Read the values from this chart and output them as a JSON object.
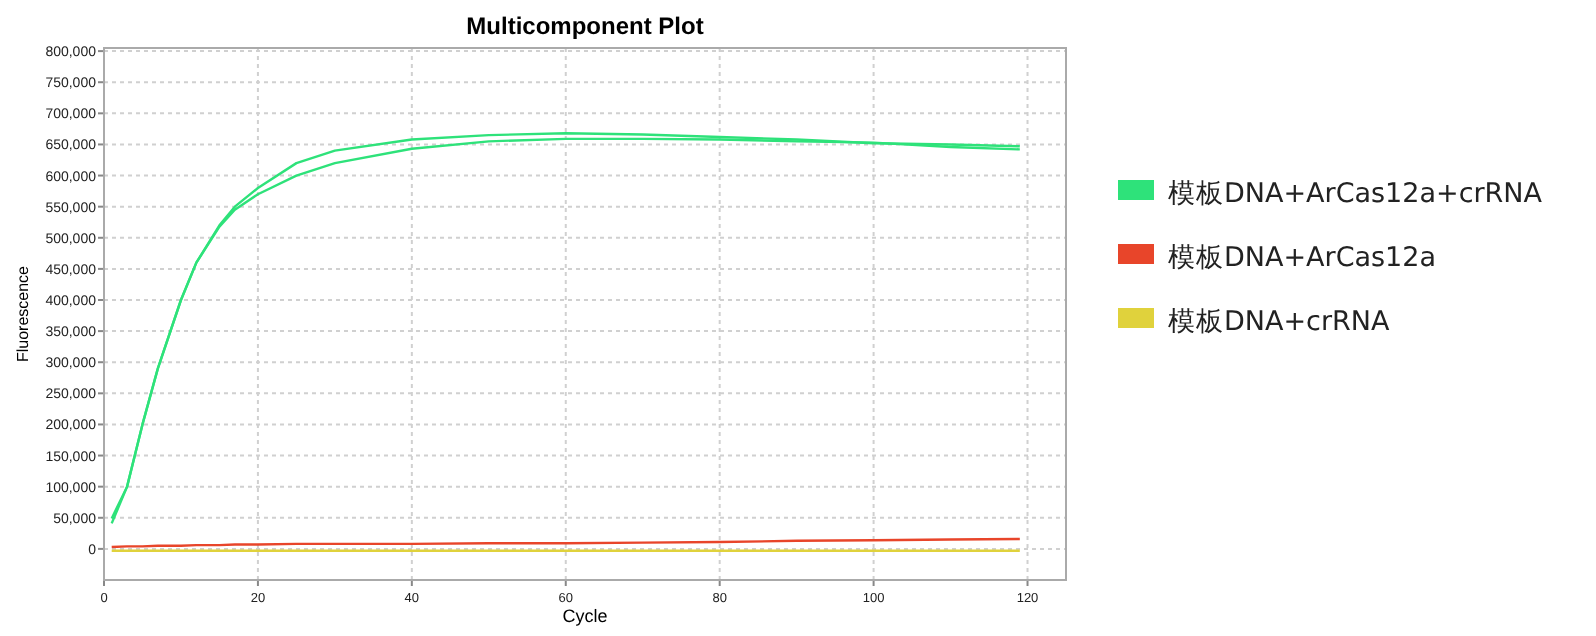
{
  "chart_data": {
    "type": "line",
    "title": "Multicomponent Plot",
    "xlabel": "Cycle",
    "ylabel": "Fluorescence",
    "xlim": [
      0,
      125
    ],
    "xticks": [
      0,
      20,
      40,
      60,
      80,
      100,
      120
    ],
    "ylim": [
      -50000,
      805000
    ],
    "yticks": [
      {
        "value": 0,
        "label": "0"
      },
      {
        "value": 50000,
        "label": "50,000"
      },
      {
        "value": 100000,
        "label": "100,000"
      },
      {
        "value": 150000,
        "label": "150,000"
      },
      {
        "value": 200000,
        "label": "200,000"
      },
      {
        "value": 250000,
        "label": "250,000"
      },
      {
        "value": 300000,
        "label": "300,000"
      },
      {
        "value": 350000,
        "label": "350,000"
      },
      {
        "value": 400000,
        "label": "400,000"
      },
      {
        "value": 450000,
        "label": "450,000"
      },
      {
        "value": 500000,
        "label": "500,000"
      },
      {
        "value": 550000,
        "label": "550,000"
      },
      {
        "value": 600000,
        "label": "600,000"
      },
      {
        "value": 650000,
        "label": "650,000"
      },
      {
        "value": 700000,
        "label": "700,000"
      },
      {
        "value": 750000,
        "label": "750,000"
      },
      {
        "value": 800000,
        "label": "800,000"
      }
    ],
    "grid": true,
    "legend": "right",
    "marker": "none",
    "line_style": "solid",
    "x": [
      1,
      3,
      5,
      7,
      10,
      12,
      15,
      17,
      20,
      25,
      30,
      40,
      50,
      60,
      70,
      80,
      90,
      100,
      110,
      119
    ],
    "series": [
      {
        "name": "模板DNA+ArCas12a+crRNA",
        "color": "#2ee27a",
        "values": [
          49000,
          100000,
          200000,
          290000,
          400000,
          460000,
          520000,
          550000,
          580000,
          620000,
          640000,
          658000,
          665000,
          668000,
          666000,
          662000,
          658000,
          652000,
          650000,
          647000
        ]
      },
      {
        "color": "#2ee27a",
        "values": [
          41000,
          100000,
          200000,
          290000,
          400000,
          460000,
          518000,
          545000,
          570000,
          600000,
          620000,
          643000,
          655000,
          659000,
          659000,
          658000,
          655000,
          653000,
          646000,
          642000
        ]
      },
      {
        "name": "模板DNA+ArCas12a",
        "color": "#e8452a",
        "values": [
          3000,
          4000,
          4000,
          5000,
          5000,
          6000,
          6000,
          7000,
          7000,
          8000,
          8000,
          8000,
          9000,
          9000,
          10000,
          11000,
          13000,
          14000,
          15000,
          16000
        ]
      },
      {
        "name": "模板DNA+crRNA",
        "color": "#e0d23c",
        "values": [
          -3000,
          -3000,
          -3000,
          -3000,
          -3000,
          -3000,
          -3000,
          -3000,
          -3000,
          -3000,
          -3000,
          -3000,
          -3000,
          -3000,
          -3000,
          -3000,
          -3000,
          -3000,
          -3000,
          -3000
        ]
      }
    ]
  }
}
